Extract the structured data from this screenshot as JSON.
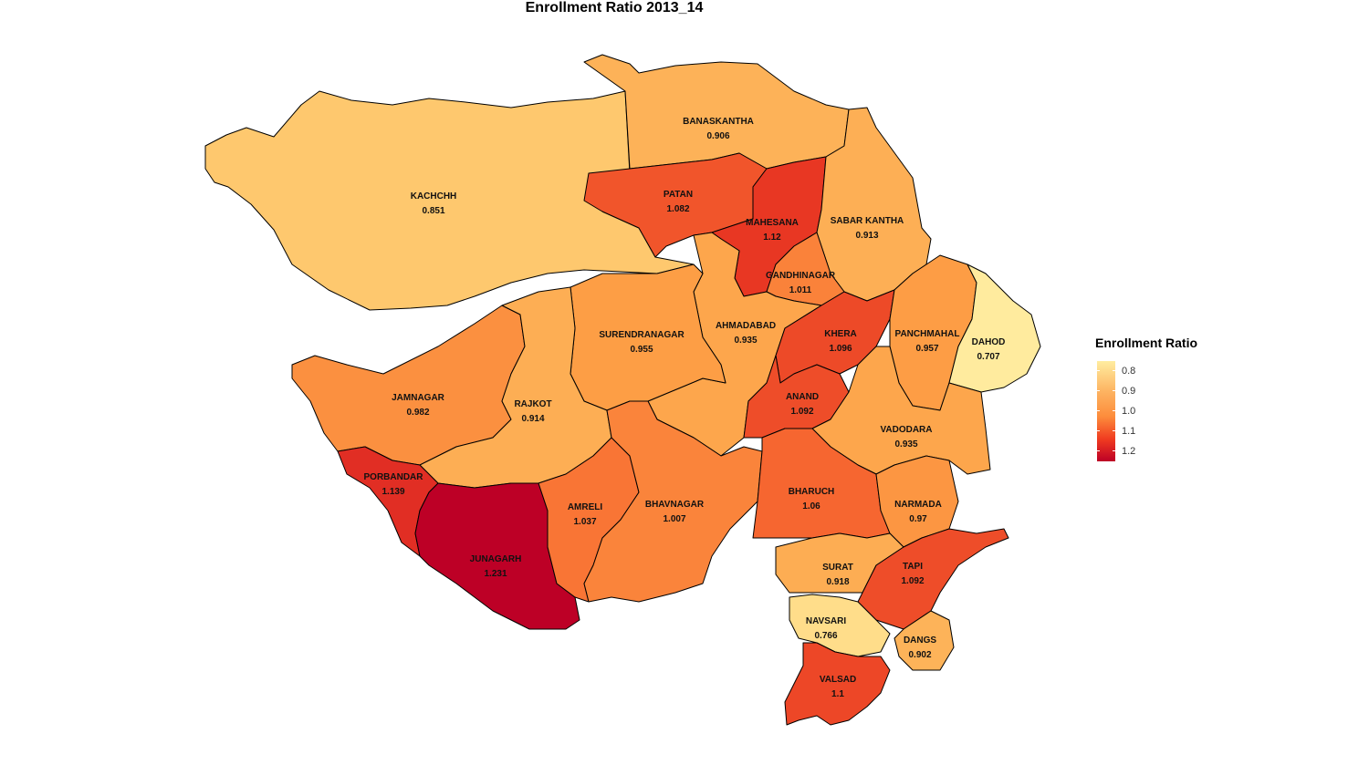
{
  "title": "Enrollment Ratio 2013_14",
  "legend": {
    "title": "Enrollment Ratio",
    "ticks": [
      "0.8",
      "0.9",
      "1.0",
      "1.1",
      "1.2"
    ],
    "colors": {
      "low": "#ffeda0",
      "mid_low": "#fdb462",
      "mid": "#fd8d3c",
      "mid_high": "#f03b20",
      "high": "#bd0026"
    }
  },
  "districts": [
    {
      "name": "KACHCHH",
      "value": "0.851"
    },
    {
      "name": "BANASKANTHA",
      "value": "0.906"
    },
    {
      "name": "PATAN",
      "value": "1.082"
    },
    {
      "name": "MAHESANA",
      "value": "1.12"
    },
    {
      "name": "SABAR KANTHA",
      "value": "0.913"
    },
    {
      "name": "GANDHINAGAR",
      "value": "1.011"
    },
    {
      "name": "AHMADABAD",
      "value": "0.935"
    },
    {
      "name": "SURENDRANAGAR",
      "value": "0.955"
    },
    {
      "name": "JAMNAGAR",
      "value": "0.982"
    },
    {
      "name": "RAJKOT",
      "value": "0.914"
    },
    {
      "name": "PORBANDAR",
      "value": "1.139"
    },
    {
      "name": "JUNAGARH",
      "value": "1.231"
    },
    {
      "name": "AMRELI",
      "value": "1.037"
    },
    {
      "name": "BHAVNAGAR",
      "value": "1.007"
    },
    {
      "name": "KHERA",
      "value": "1.096"
    },
    {
      "name": "ANAND",
      "value": "1.092"
    },
    {
      "name": "PANCHMAHAL",
      "value": "0.957"
    },
    {
      "name": "DAHOD",
      "value": "0.707"
    },
    {
      "name": "VADODARA",
      "value": "0.935"
    },
    {
      "name": "BHARUCH",
      "value": "1.06"
    },
    {
      "name": "NARMADA",
      "value": "0.97"
    },
    {
      "name": "SURAT",
      "value": "0.918"
    },
    {
      "name": "TAPI",
      "value": "1.092"
    },
    {
      "name": "NAVSARI",
      "value": "0.766"
    },
    {
      "name": "DANGS",
      "value": "0.902"
    },
    {
      "name": "VALSAD",
      "value": "1.1"
    }
  ]
}
